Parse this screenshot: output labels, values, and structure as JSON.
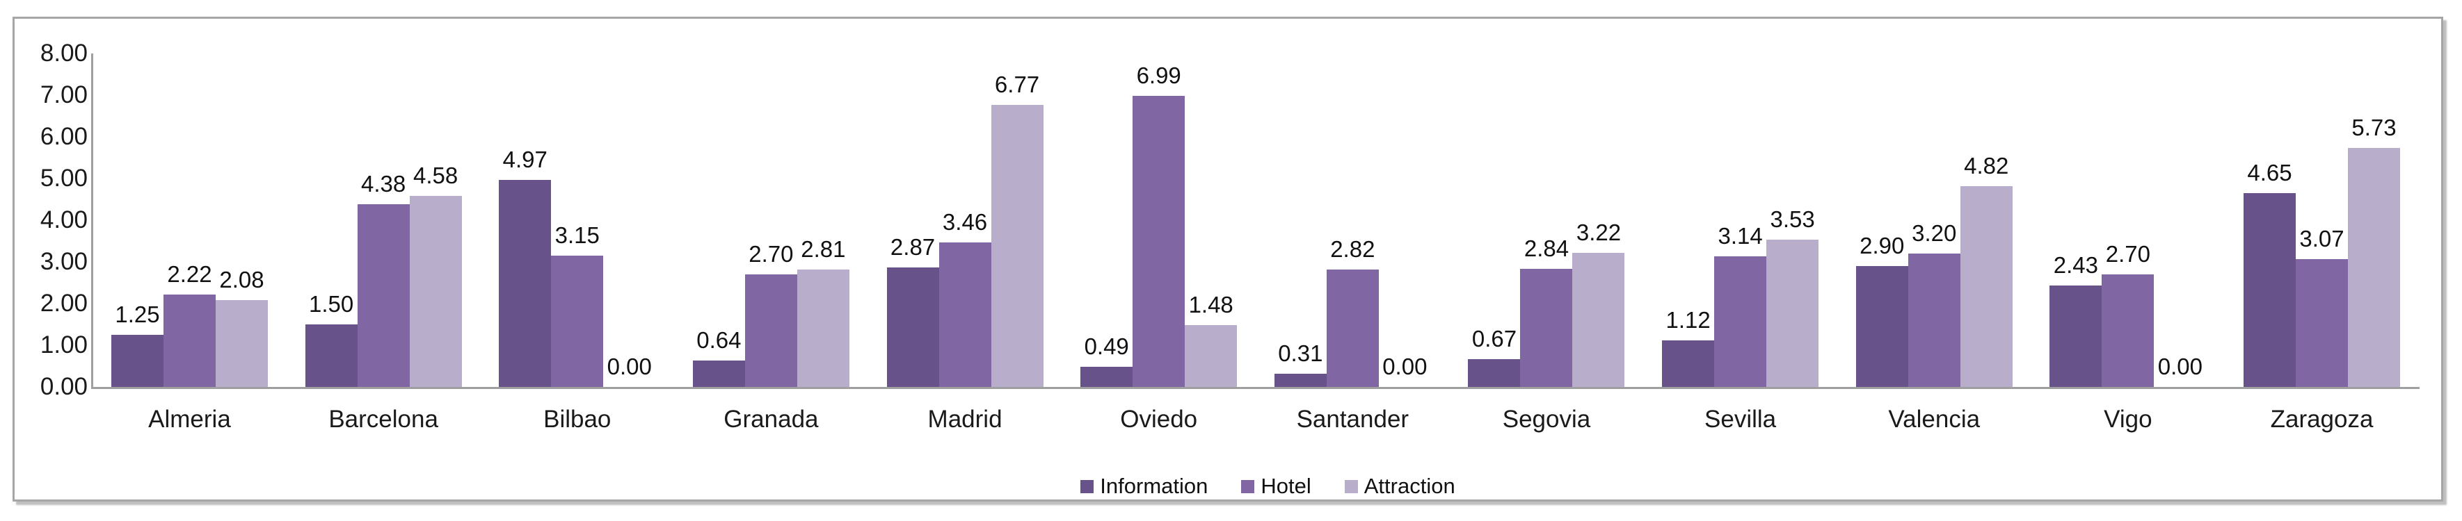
{
  "chart_data": {
    "type": "bar",
    "title": "",
    "xlabel": "",
    "ylabel": "",
    "categories": [
      "Almeria",
      "Barcelona",
      "Bilbao",
      "Granada",
      "Madrid",
      "Oviedo",
      "Santander",
      "Segovia",
      "Sevilla",
      "Valencia",
      "Vigo",
      "Zaragoza"
    ],
    "series": [
      {
        "name": "Information",
        "color": "#675289",
        "values": [
          1.25,
          1.5,
          4.97,
          0.64,
          2.87,
          0.49,
          0.31,
          0.67,
          1.12,
          2.9,
          2.43,
          4.65
        ]
      },
      {
        "name": "Hotel",
        "color": "#8166a4",
        "values": [
          2.22,
          4.38,
          3.15,
          2.7,
          3.46,
          6.99,
          2.82,
          2.84,
          3.14,
          3.2,
          2.7,
          3.07
        ]
      },
      {
        "name": "Attraction",
        "color": "#b9adcc",
        "values": [
          2.08,
          4.58,
          0.0,
          2.81,
          6.77,
          1.48,
          0.0,
          3.22,
          3.53,
          4.82,
          0.0,
          5.73
        ]
      }
    ],
    "ylim": [
      0,
      8
    ],
    "y_ticks": [
      "0.00",
      "1.00",
      "2.00",
      "3.00",
      "4.00",
      "5.00",
      "6.00",
      "7.00",
      "8.00"
    ],
    "value_labels_shown": true,
    "value_label_decimals": 2,
    "grid": false,
    "legend_position": "bottom-center",
    "axis_color": "#9f9f9f",
    "text_color": "#1a1a1a",
    "frame_border_color": "#a6a6a6",
    "background_color": "#ffffff"
  }
}
